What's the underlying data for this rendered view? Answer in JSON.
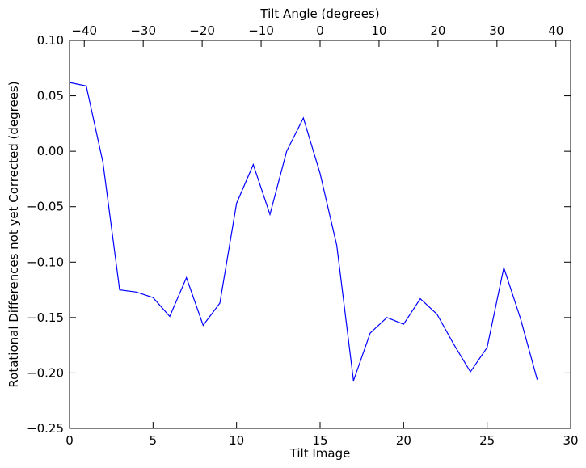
{
  "chart_data": {
    "type": "line",
    "xlabel": "Tilt Image",
    "ylabel": "Rotational Differences not yet Corrected (degrees)",
    "top_xlabel": "Tilt Angle (degrees)",
    "xlim": [
      0,
      30
    ],
    "ylim": [
      -0.25,
      0.1
    ],
    "top_xlim": [
      -42.5,
      42.5
    ],
    "x_ticks": [
      0,
      5,
      10,
      15,
      20,
      25,
      30
    ],
    "y_ticks": [
      -0.25,
      -0.2,
      -0.15,
      -0.1,
      -0.05,
      0.0,
      0.05,
      0.1
    ],
    "top_ticks": [
      -40,
      -30,
      -20,
      -10,
      0,
      10,
      20,
      30,
      40
    ],
    "x_tick_labels": [
      "0",
      "5",
      "10",
      "15",
      "20",
      "25",
      "30"
    ],
    "y_tick_labels": [
      "−0.25",
      "−0.20",
      "−0.15",
      "−0.10",
      "−0.05",
      "0.00",
      "0.05",
      "0.10"
    ],
    "top_tick_labels": [
      "−40",
      "−30",
      "−20",
      "−10",
      "0",
      "10",
      "20",
      "30",
      "40"
    ],
    "grid": false,
    "series": [
      {
        "color": "#0000ff",
        "x": [
          0,
          1,
          2,
          3,
          4,
          5,
          6,
          7,
          8,
          9,
          10,
          11,
          12,
          13,
          14,
          15,
          16,
          17,
          18,
          19,
          20,
          21,
          22,
          23,
          24,
          25,
          26,
          27,
          28
        ],
        "y": [
          0.062,
          0.059,
          -0.01,
          -0.125,
          -0.127,
          -0.132,
          -0.149,
          -0.114,
          -0.157,
          -0.137,
          -0.047,
          -0.012,
          -0.057,
          0.0,
          0.03,
          -0.02,
          -0.085,
          -0.207,
          -0.164,
          -0.15,
          -0.156,
          -0.133,
          -0.147,
          -0.174,
          -0.199,
          -0.177,
          -0.105,
          -0.151,
          -0.206
        ]
      }
    ]
  }
}
